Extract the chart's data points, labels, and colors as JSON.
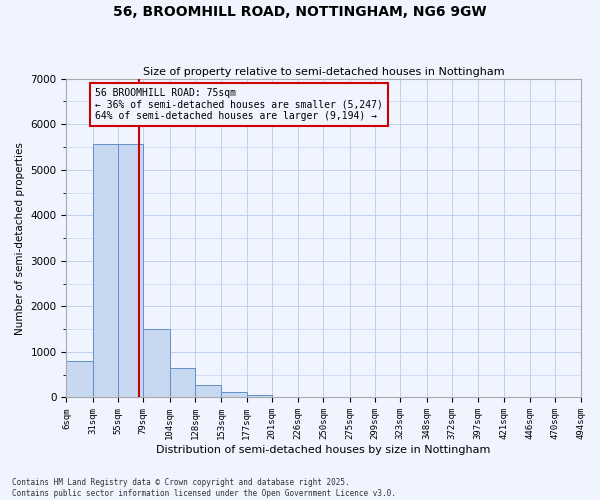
{
  "title": "56, BROOMHILL ROAD, NOTTINGHAM, NG6 9GW",
  "subtitle": "Size of property relative to semi-detached houses in Nottingham",
  "xlabel": "Distribution of semi-detached houses by size in Nottingham",
  "ylabel": "Number of semi-detached properties",
  "bin_labels": [
    "6sqm",
    "31sqm",
    "55sqm",
    "79sqm",
    "104sqm",
    "128sqm",
    "153sqm",
    "177sqm",
    "201sqm",
    "226sqm",
    "250sqm",
    "275sqm",
    "299sqm",
    "323sqm",
    "348sqm",
    "372sqm",
    "397sqm",
    "421sqm",
    "446sqm",
    "470sqm",
    "494sqm"
  ],
  "bin_edges": [
    6,
    31,
    55,
    79,
    104,
    128,
    153,
    177,
    201,
    226,
    250,
    275,
    299,
    323,
    348,
    372,
    397,
    421,
    446,
    470,
    494
  ],
  "bar_heights": [
    800,
    5560,
    5560,
    1500,
    650,
    280,
    130,
    50,
    0,
    0,
    0,
    0,
    0,
    0,
    0,
    0,
    0,
    0,
    0,
    0
  ],
  "bar_color": "#c8d8f0",
  "bar_edge_color": "#6090c8",
  "property_value": 75,
  "red_line_color": "#cc0000",
  "annotation_line1": "56 BROOMHILL ROAD: 75sqm",
  "annotation_line2": "← 36% of semi-detached houses are smaller (5,247)",
  "annotation_line3": "64% of semi-detached houses are larger (9,194) →",
  "annotation_box_edge_color": "#cc0000",
  "ylim": [
    0,
    7000
  ],
  "yticks": [
    0,
    1000,
    2000,
    3000,
    4000,
    5000,
    6000,
    7000
  ],
  "footer_line1": "Contains HM Land Registry data © Crown copyright and database right 2025.",
  "footer_line2": "Contains public sector information licensed under the Open Government Licence v3.0.",
  "bg_color": "#f0f4ff",
  "grid_color": "#b8ccee"
}
